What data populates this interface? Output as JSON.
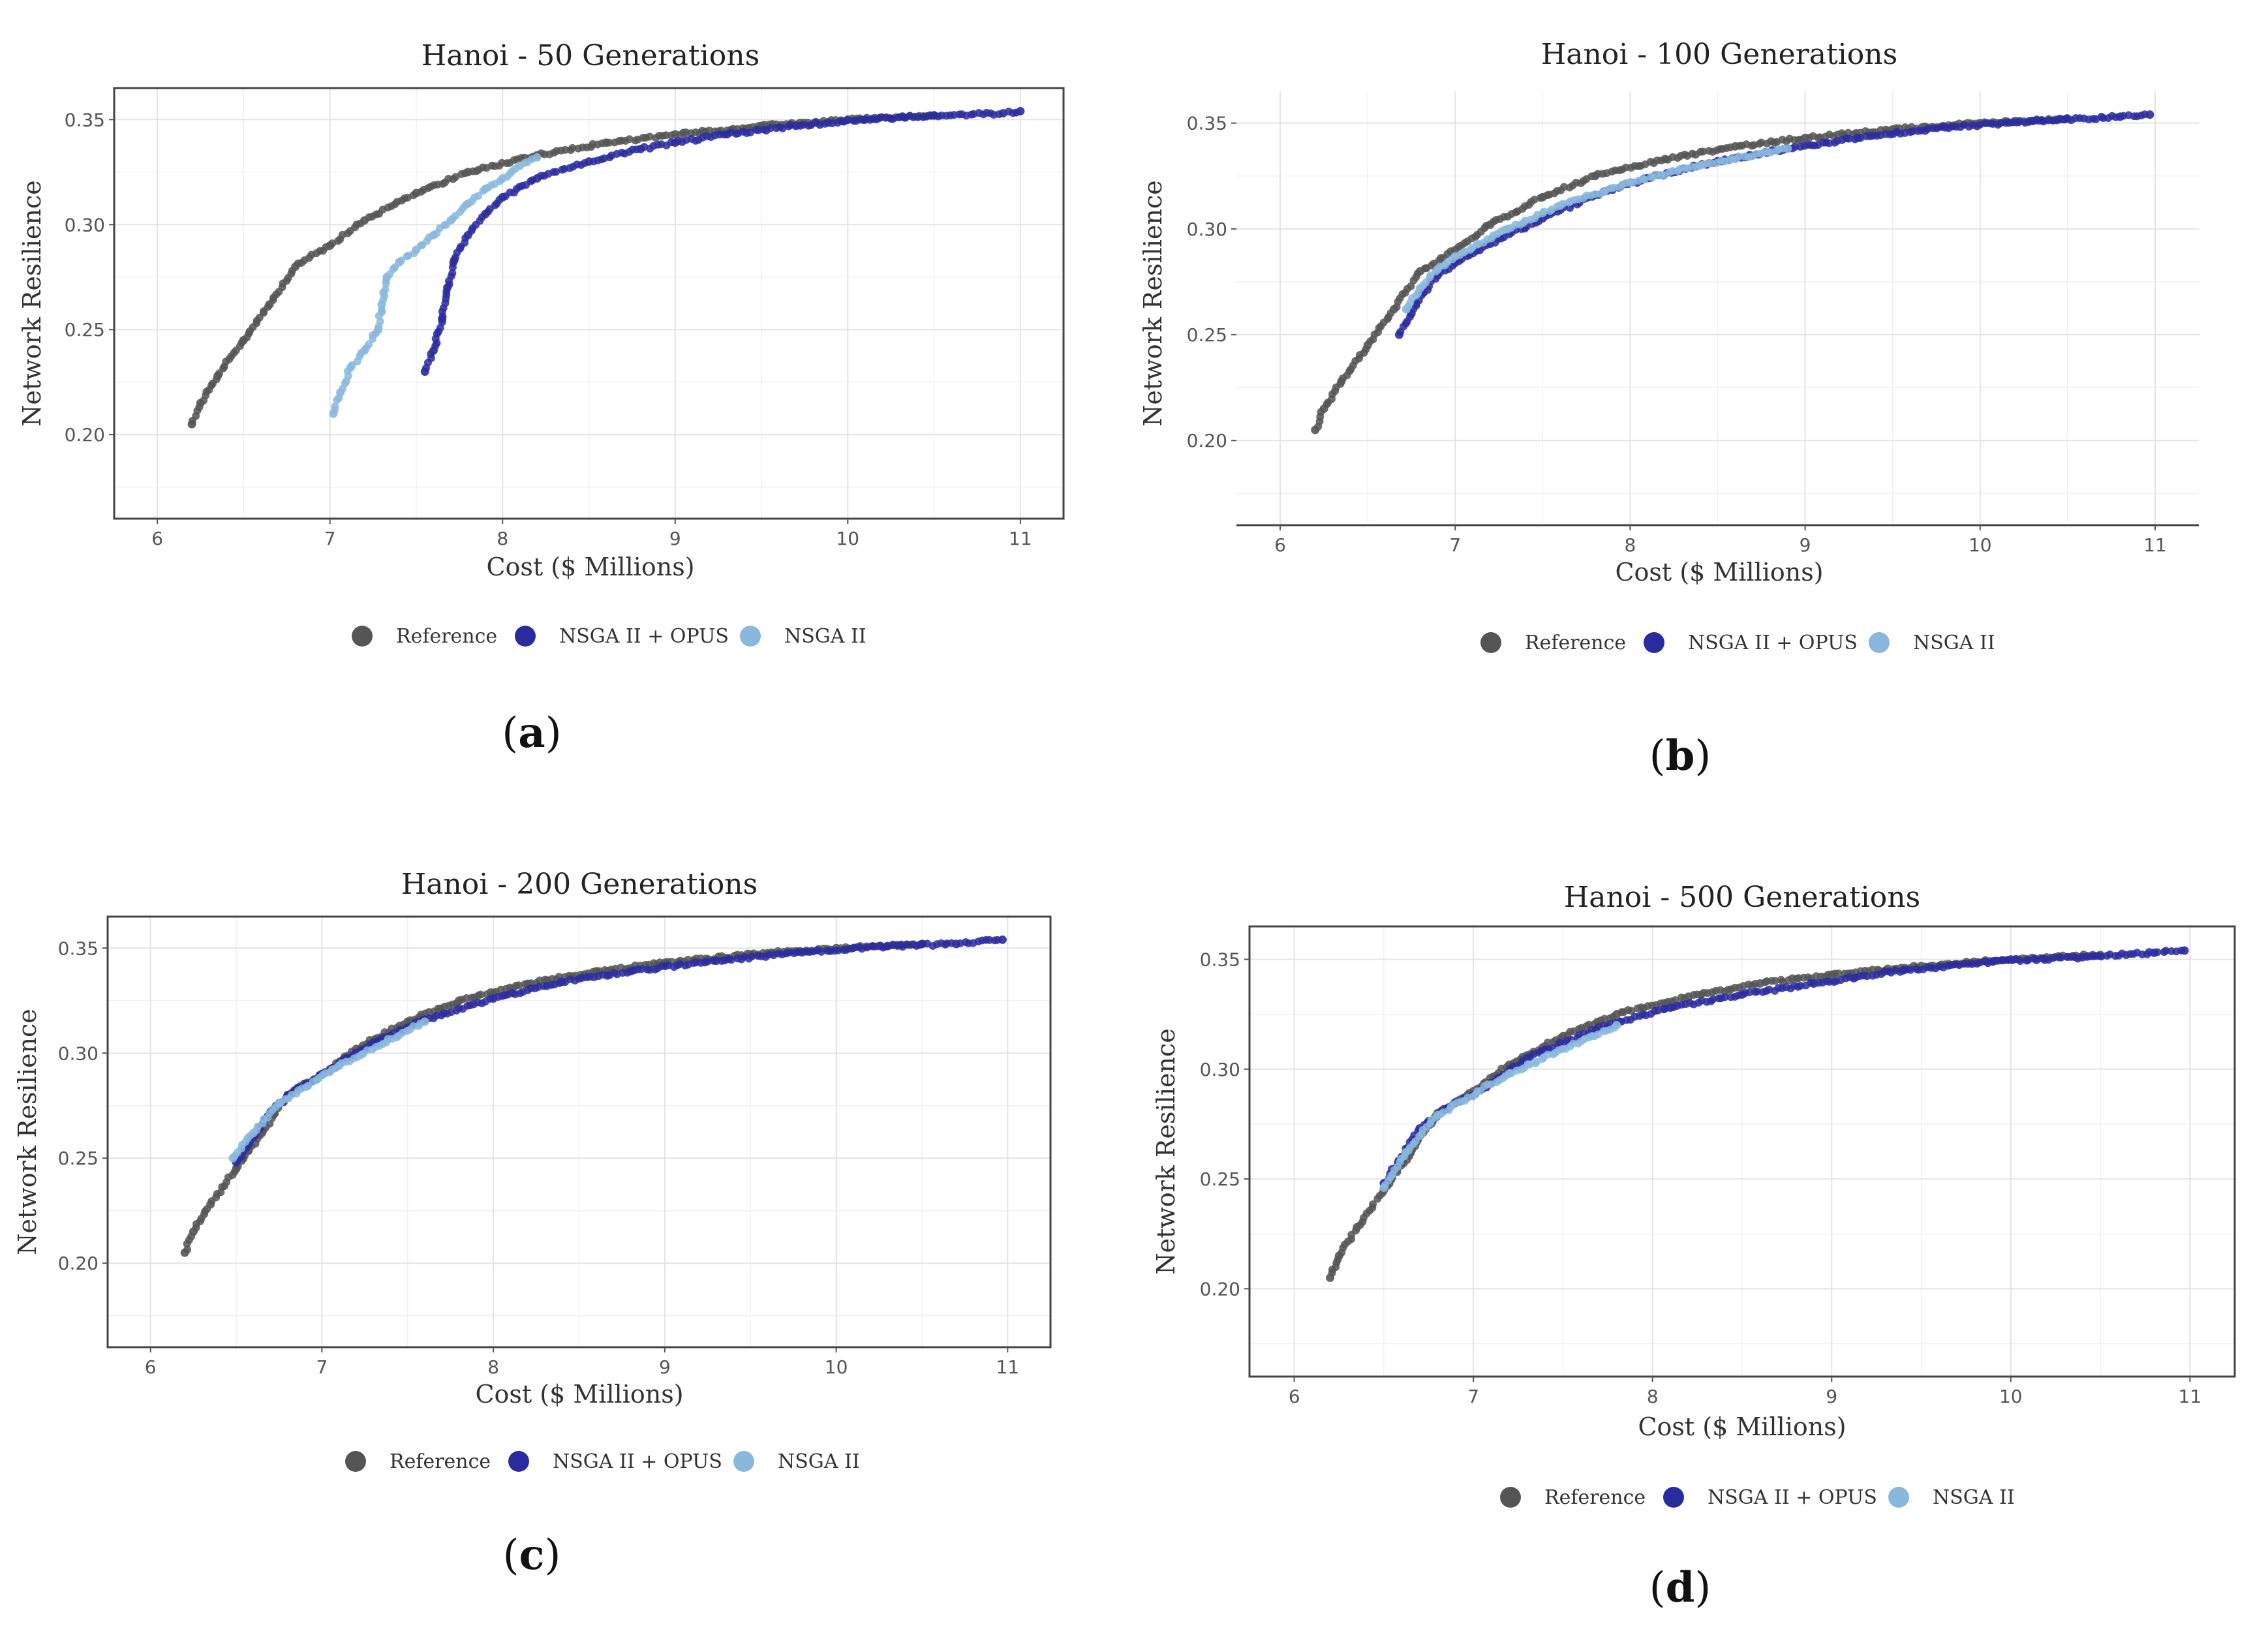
{
  "colors": {
    "reference": "#555555",
    "nsga_opus": "#2b2ba0",
    "nsga": "#8ab8dd"
  },
  "chart_data": [
    {
      "type": "scatter",
      "title": "Hanoi - 50 Generations",
      "panel": "a",
      "xlabel": "Cost ($ Millions)",
      "ylabel": "Network Resilience",
      "xlim": [
        5.75,
        11.25
      ],
      "ylim": [
        0.16,
        0.365
      ],
      "xticks": [
        "6",
        "7",
        "8",
        "9",
        "10",
        "11"
      ],
      "yticks": [
        "0.20",
        "0.25",
        "0.30",
        "0.35"
      ],
      "legend": [
        "Reference",
        "NSGA II + OPUS",
        "NSGA II"
      ],
      "series": [
        {
          "name": "Reference",
          "points": [
            [
              6.2,
              0.205
            ],
            [
              6.25,
              0.215
            ],
            [
              6.35,
              0.228
            ],
            [
              6.5,
              0.245
            ],
            [
              6.65,
              0.262
            ],
            [
              6.8,
              0.28
            ],
            [
              7.0,
              0.29
            ],
            [
              7.2,
              0.302
            ],
            [
              7.5,
              0.315
            ],
            [
              7.8,
              0.325
            ],
            [
              8.2,
              0.333
            ],
            [
              8.6,
              0.339
            ],
            [
              9.0,
              0.343
            ],
            [
              9.5,
              0.347
            ],
            [
              10.0,
              0.35
            ],
            [
              10.5,
              0.352
            ]
          ]
        },
        {
          "name": "NSGA II + OPUS",
          "points": [
            [
              7.55,
              0.23
            ],
            [
              7.6,
              0.24
            ],
            [
              7.65,
              0.255
            ],
            [
              7.68,
              0.27
            ],
            [
              7.72,
              0.283
            ],
            [
              7.8,
              0.295
            ],
            [
              7.9,
              0.305
            ],
            [
              8.0,
              0.313
            ],
            [
              8.2,
              0.322
            ],
            [
              8.5,
              0.33
            ],
            [
              8.8,
              0.336
            ],
            [
              9.0,
              0.339
            ],
            [
              9.3,
              0.343
            ],
            [
              9.7,
              0.347
            ],
            [
              10.1,
              0.35
            ],
            [
              10.5,
              0.352
            ],
            [
              10.9,
              0.353
            ],
            [
              11.0,
              0.354
            ]
          ]
        },
        {
          "name": "NSGA II",
          "points": [
            [
              7.02,
              0.21
            ],
            [
              7.06,
              0.22
            ],
            [
              7.12,
              0.232
            ],
            [
              7.2,
              0.24
            ],
            [
              7.28,
              0.25
            ],
            [
              7.3,
              0.262
            ],
            [
              7.33,
              0.275
            ],
            [
              7.4,
              0.282
            ],
            [
              7.5,
              0.288
            ],
            [
              7.6,
              0.295
            ],
            [
              7.7,
              0.302
            ],
            [
              7.8,
              0.31
            ],
            [
              7.9,
              0.317
            ],
            [
              8.0,
              0.322
            ],
            [
              8.1,
              0.328
            ],
            [
              8.2,
              0.332
            ]
          ]
        }
      ]
    },
    {
      "type": "scatter",
      "title": "Hanoi - 100 Generations",
      "panel": "b",
      "xlabel": "Cost ($ Millions)",
      "ylabel": "Network Resilience",
      "xlim": [
        5.75,
        11.25
      ],
      "ylim": [
        0.16,
        0.365
      ],
      "xticks": [
        "6",
        "7",
        "8",
        "9",
        "10",
        "11"
      ],
      "yticks": [
        "0.20",
        "0.25",
        "0.30",
        "0.35"
      ],
      "legend": [
        "Reference",
        "NSGA II + OPUS",
        "NSGA II"
      ],
      "series": [
        {
          "name": "Reference",
          "points": [
            [
              6.2,
              0.205
            ],
            [
              6.25,
              0.215
            ],
            [
              6.35,
              0.228
            ],
            [
              6.5,
              0.245
            ],
            [
              6.65,
              0.262
            ],
            [
              6.8,
              0.28
            ],
            [
              7.0,
              0.29
            ],
            [
              7.2,
              0.302
            ],
            [
              7.5,
              0.315
            ],
            [
              7.8,
              0.325
            ],
            [
              8.2,
              0.333
            ],
            [
              8.6,
              0.339
            ],
            [
              9.0,
              0.343
            ],
            [
              9.5,
              0.347
            ],
            [
              10.0,
              0.35
            ],
            [
              10.5,
              0.352
            ]
          ]
        },
        {
          "name": "NSGA II + OPUS",
          "points": [
            [
              6.68,
              0.25
            ],
            [
              6.75,
              0.26
            ],
            [
              6.82,
              0.27
            ],
            [
              6.9,
              0.278
            ],
            [
              7.0,
              0.284
            ],
            [
              7.2,
              0.293
            ],
            [
              7.5,
              0.305
            ],
            [
              7.8,
              0.316
            ],
            [
              8.1,
              0.324
            ],
            [
              8.5,
              0.332
            ],
            [
              8.9,
              0.338
            ],
            [
              9.3,
              0.343
            ],
            [
              9.8,
              0.348
            ],
            [
              10.3,
              0.351
            ],
            [
              10.8,
              0.353
            ],
            [
              10.97,
              0.354
            ]
          ]
        },
        {
          "name": "NSGA II",
          "points": [
            [
              6.72,
              0.262
            ],
            [
              6.8,
              0.272
            ],
            [
              6.9,
              0.281
            ],
            [
              7.0,
              0.287
            ],
            [
              7.3,
              0.3
            ],
            [
              7.6,
              0.311
            ],
            [
              8.0,
              0.322
            ],
            [
              8.4,
              0.33
            ],
            [
              8.9,
              0.338
            ]
          ]
        }
      ]
    },
    {
      "type": "scatter",
      "title": "Hanoi - 200 Generations",
      "panel": "c",
      "xlabel": "Cost ($ Millions)",
      "ylabel": "Network Resilience",
      "xlim": [
        5.75,
        11.25
      ],
      "ylim": [
        0.16,
        0.365
      ],
      "xticks": [
        "6",
        "7",
        "8",
        "9",
        "10",
        "11"
      ],
      "yticks": [
        "0.20",
        "0.25",
        "0.30",
        "0.35"
      ],
      "legend": [
        "Reference",
        "NSGA II + OPUS",
        "NSGA II"
      ],
      "series": [
        {
          "name": "Reference",
          "points": [
            [
              6.2,
              0.205
            ],
            [
              6.25,
              0.215
            ],
            [
              6.35,
              0.228
            ],
            [
              6.5,
              0.245
            ],
            [
              6.65,
              0.262
            ],
            [
              6.8,
              0.28
            ],
            [
              7.0,
              0.29
            ],
            [
              7.2,
              0.302
            ],
            [
              7.5,
              0.315
            ],
            [
              7.8,
              0.325
            ],
            [
              8.2,
              0.333
            ],
            [
              8.6,
              0.339
            ],
            [
              9.0,
              0.343
            ],
            [
              9.5,
              0.347
            ],
            [
              10.0,
              0.35
            ],
            [
              10.5,
              0.352
            ]
          ]
        },
        {
          "name": "NSGA II + OPUS",
          "points": [
            [
              6.5,
              0.248
            ],
            [
              6.6,
              0.26
            ],
            [
              6.7,
              0.272
            ],
            [
              6.8,
              0.28
            ],
            [
              7.0,
              0.29
            ],
            [
              7.3,
              0.305
            ],
            [
              7.6,
              0.316
            ],
            [
              8.0,
              0.326
            ],
            [
              8.4,
              0.334
            ],
            [
              8.8,
              0.339
            ],
            [
              9.3,
              0.344
            ],
            [
              9.8,
              0.348
            ],
            [
              10.3,
              0.351
            ],
            [
              10.7,
              0.352
            ],
            [
              10.97,
              0.354
            ]
          ]
        },
        {
          "name": "NSGA II",
          "points": [
            [
              6.48,
              0.25
            ],
            [
              6.6,
              0.262
            ],
            [
              6.75,
              0.276
            ],
            [
              7.1,
              0.294
            ],
            [
              7.6,
              0.315
            ]
          ]
        }
      ]
    },
    {
      "type": "scatter",
      "title": "Hanoi - 500 Generations",
      "panel": "d",
      "xlabel": "Cost ($ Millions)",
      "ylabel": "Network Resilience",
      "xlim": [
        5.75,
        11.25
      ],
      "ylim": [
        0.16,
        0.365
      ],
      "xticks": [
        "6",
        "7",
        "8",
        "9",
        "10",
        "11"
      ],
      "yticks": [
        "0.20",
        "0.25",
        "0.30",
        "0.35"
      ],
      "legend": [
        "Reference",
        "NSGA II + OPUS",
        "NSGA II"
      ],
      "series": [
        {
          "name": "Reference",
          "points": [
            [
              6.2,
              0.205
            ],
            [
              6.25,
              0.215
            ],
            [
              6.35,
              0.228
            ],
            [
              6.5,
              0.245
            ],
            [
              6.65,
              0.262
            ],
            [
              6.8,
              0.28
            ],
            [
              7.0,
              0.29
            ],
            [
              7.2,
              0.302
            ],
            [
              7.5,
              0.315
            ],
            [
              7.8,
              0.325
            ],
            [
              8.2,
              0.333
            ],
            [
              8.6,
              0.339
            ],
            [
              9.0,
              0.343
            ],
            [
              9.5,
              0.347
            ],
            [
              10.0,
              0.35
            ],
            [
              10.5,
              0.352
            ]
          ]
        },
        {
          "name": "NSGA II + OPUS",
          "points": [
            [
              6.5,
              0.248
            ],
            [
              6.6,
              0.26
            ],
            [
              6.7,
              0.273
            ],
            [
              6.85,
              0.282
            ],
            [
              7.05,
              0.291
            ],
            [
              7.3,
              0.305
            ],
            [
              7.7,
              0.319
            ],
            [
              8.1,
              0.328
            ],
            [
              8.5,
              0.334
            ],
            [
              8.9,
              0.339
            ],
            [
              9.4,
              0.345
            ],
            [
              9.9,
              0.349
            ],
            [
              10.4,
              0.351
            ],
            [
              10.8,
              0.353
            ],
            [
              10.97,
              0.354
            ]
          ]
        },
        {
          "name": "NSGA II",
          "points": [
            [
              6.5,
              0.246
            ],
            [
              6.62,
              0.262
            ],
            [
              6.8,
              0.279
            ],
            [
              7.2,
              0.298
            ],
            [
              7.8,
              0.32
            ]
          ]
        }
      ]
    }
  ]
}
